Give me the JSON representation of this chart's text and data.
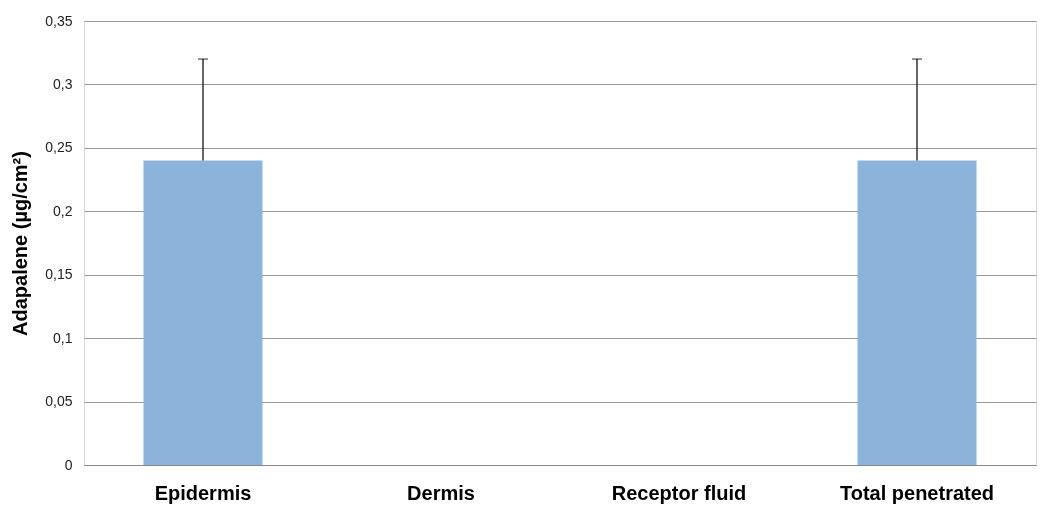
{
  "chart_data": {
    "type": "bar",
    "ylabel": "Adapalene (µg/cm²)",
    "categories": [
      "Epidermis",
      "Dermis",
      "Receptor fluid",
      "Total penetrated"
    ],
    "values": [
      0.24,
      0,
      0,
      0.24
    ],
    "color": "#8cb3d9",
    "errors": [
      [
        0.24,
        0.32
      ],
      null,
      null,
      [
        0.24,
        0.32
      ]
    ],
    "ylim": [
      0,
      0.35
    ],
    "yticks": [
      0,
      {
        "value": 0.05,
        "label": "0,05"
      },
      {
        "value": 0.1,
        "label": "0,1"
      },
      {
        "value": 0.15,
        "label": "0,15"
      },
      {
        "value": 0.2,
        "label": "0,2"
      },
      {
        "value": 0.25,
        "label": "0,25"
      },
      {
        "value": 0.3,
        "label": "0,3"
      },
      {
        "value": 0.35,
        "label": "0,35"
      }
    ],
    "grid": "y"
  }
}
